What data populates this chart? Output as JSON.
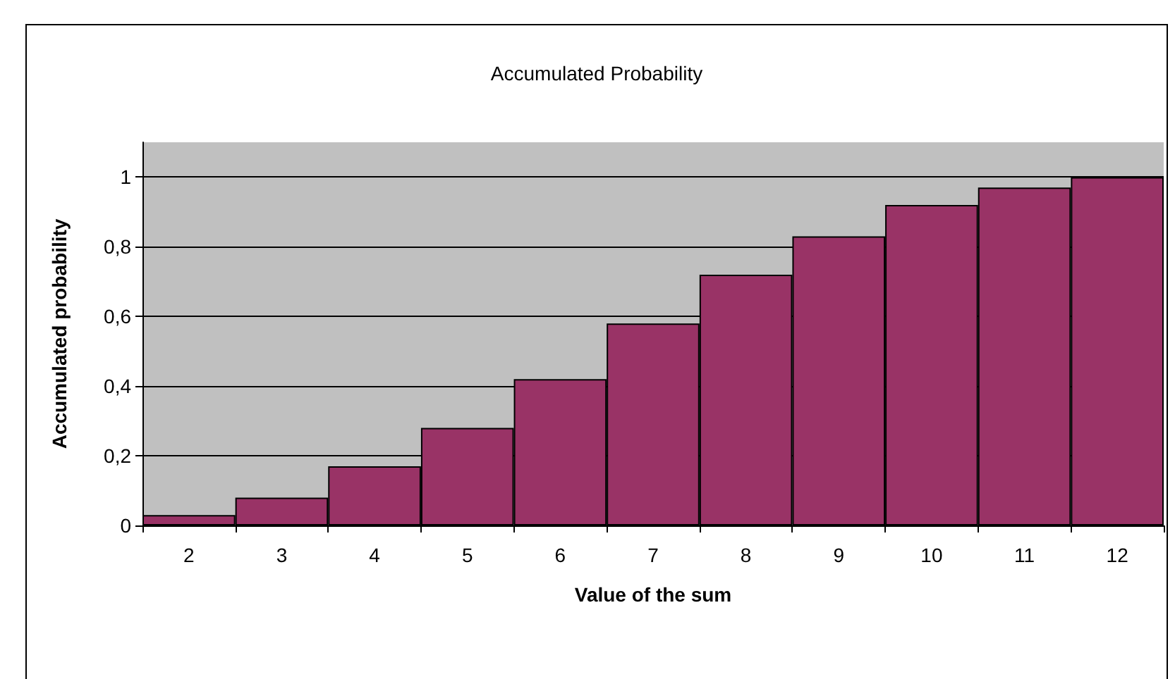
{
  "chart_data": {
    "type": "bar",
    "title": "Accumulated Probability",
    "xlabel": "Value of the sum",
    "ylabel": "Accumulated probability",
    "categories": [
      "2",
      "3",
      "4",
      "5",
      "6",
      "7",
      "8",
      "9",
      "10",
      "11",
      "12"
    ],
    "values": [
      0.03,
      0.08,
      0.17,
      0.28,
      0.42,
      0.58,
      0.72,
      0.83,
      0.92,
      0.97,
      1
    ],
    "color": "#993366",
    "ylim": [
      0,
      1.1
    ],
    "yticks": [
      {
        "value": 0,
        "label": "0"
      },
      {
        "value": 0.2,
        "label": "0,2"
      },
      {
        "value": 0.4,
        "label": "0,4"
      },
      {
        "value": 0.6,
        "label": "0,6"
      },
      {
        "value": 0.8,
        "label": "0,8"
      },
      {
        "value": 1,
        "label": "1"
      }
    ],
    "grid": "y"
  }
}
